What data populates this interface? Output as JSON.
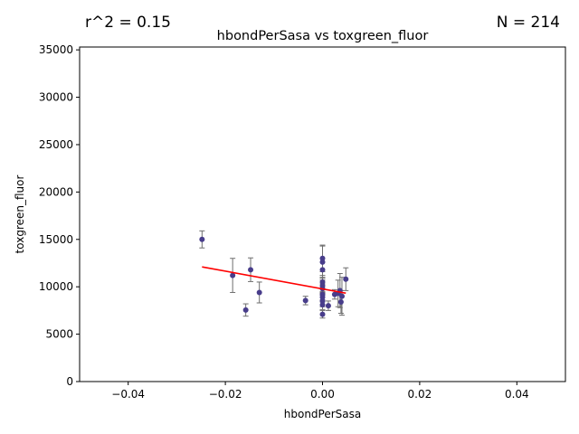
{
  "annotations": {
    "r2": "r^2 = 0.15",
    "n": "N = 214"
  },
  "chart_data": {
    "type": "scatter",
    "title": "hbondPerSasa vs toxgreen_fluor",
    "xlabel": "hbondPerSasa",
    "ylabel": "toxgreen_fluor",
    "xlim": [
      -0.05,
      0.05
    ],
    "ylim": [
      0,
      35300
    ],
    "x_ticks": [
      -0.04,
      -0.02,
      0.0,
      0.02,
      0.04
    ],
    "x_tick_labels": [
      "−0.04",
      "−0.02",
      "0.00",
      "0.02",
      "0.04"
    ],
    "y_ticks": [
      0,
      5000,
      10000,
      15000,
      20000,
      25000,
      30000,
      35000
    ],
    "y_tick_labels": [
      "0",
      "5000",
      "10000",
      "15000",
      "20000",
      "25000",
      "30000",
      "35000"
    ],
    "grid": false,
    "point_color": "#483d8b",
    "errorbar_color": "#6e6e6e",
    "fit_color": "#ff0000",
    "fit_line": {
      "x": [
        -0.0248,
        0.0048
      ],
      "y": [
        12100,
        9330
      ]
    },
    "points": [
      {
        "x": -0.0248,
        "y": 15000,
        "err": 900
      },
      {
        "x": -0.0185,
        "y": 11200,
        "err": 1800
      },
      {
        "x": -0.0158,
        "y": 7550,
        "err": 650
      },
      {
        "x": -0.0148,
        "y": 11800,
        "err": 1250
      },
      {
        "x": -0.013,
        "y": 9400,
        "err": 1100
      },
      {
        "x": -0.0035,
        "y": 8550,
        "err": 450
      },
      {
        "x": 0.0,
        "y": 13000,
        "err": 1400
      },
      {
        "x": 0.0,
        "y": 12600,
        "err": 1700
      },
      {
        "x": 0.0,
        "y": 11800,
        "err": 800
      },
      {
        "x": 0.0,
        "y": 10500,
        "err": 700
      },
      {
        "x": 0.0,
        "y": 10100,
        "err": 600
      },
      {
        "x": 0.0,
        "y": 9800,
        "err": 500
      },
      {
        "x": 0.0,
        "y": 9200,
        "err": 600
      },
      {
        "x": 0.0,
        "y": 8900,
        "err": 500
      },
      {
        "x": 0.0,
        "y": 8500,
        "err": 600
      },
      {
        "x": 0.0,
        "y": 8100,
        "err": 500
      },
      {
        "x": 0.0,
        "y": 7100,
        "err": 400
      },
      {
        "x": 0.0012,
        "y": 8000,
        "err": 500
      },
      {
        "x": 0.0025,
        "y": 9200,
        "err": 500
      },
      {
        "x": 0.0032,
        "y": 9300,
        "err": 1400
      },
      {
        "x": 0.0036,
        "y": 9600,
        "err": 1800
      },
      {
        "x": 0.0038,
        "y": 8400,
        "err": 1200
      },
      {
        "x": 0.004,
        "y": 9000,
        "err": 2000
      },
      {
        "x": 0.0048,
        "y": 10800,
        "err": 1200
      }
    ]
  }
}
